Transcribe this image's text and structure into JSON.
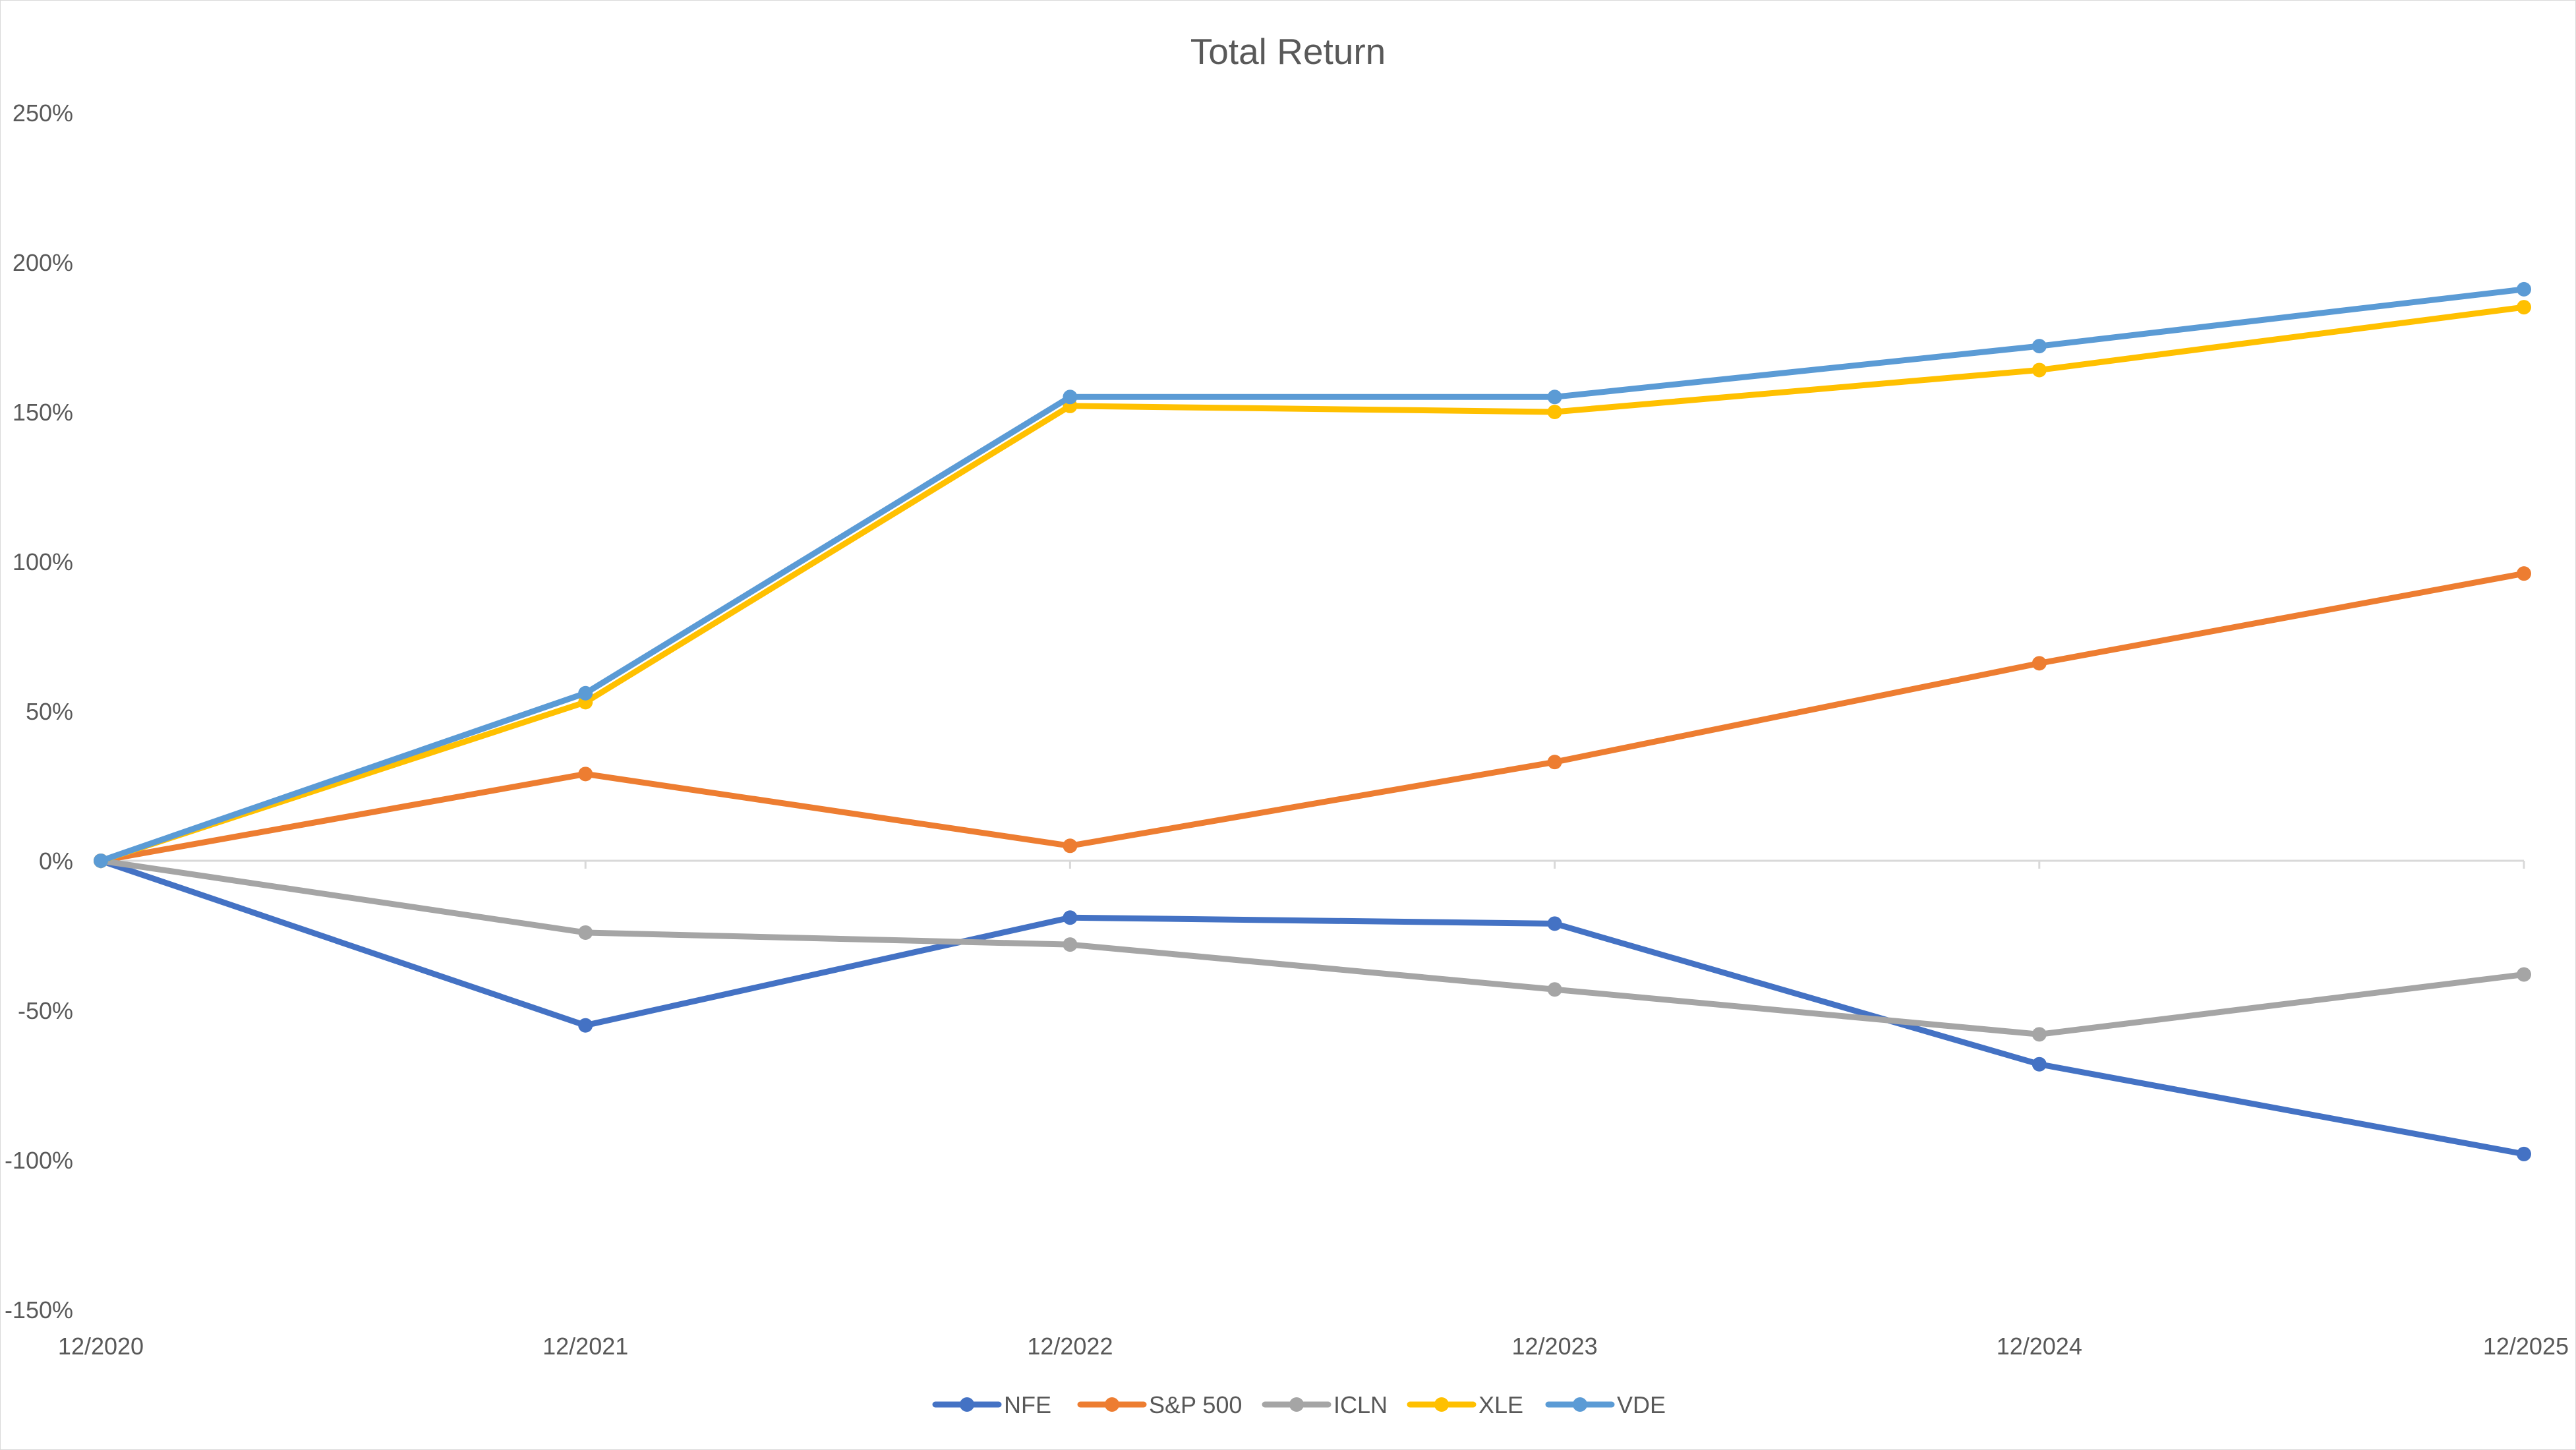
{
  "chart_data": {
    "type": "line",
    "title": "Total Return",
    "xlabel": "",
    "ylabel": "",
    "categories": [
      "12/2020",
      "12/2021",
      "12/2022",
      "12/2023",
      "12/2024",
      "12/2025"
    ],
    "ylim": [
      -150,
      250
    ],
    "yticks": [
      250,
      200,
      150,
      100,
      50,
      0,
      -50,
      -100,
      -150
    ],
    "ytick_labels": [
      "250%",
      "200%",
      "150%",
      "100%",
      "50%",
      "0%",
      "-50%",
      "-100%",
      "-150%"
    ],
    "grid": false,
    "legend_position": "bottom",
    "series": [
      {
        "name": "NFE",
        "color": "#4472c4",
        "values": [
          0,
          -55,
          -19,
          -21,
          -68,
          -98
        ]
      },
      {
        "name": "S&P 500",
        "color": "#ed7d31",
        "values": [
          0,
          29,
          5,
          33,
          66,
          96
        ]
      },
      {
        "name": "ICLN",
        "color": "#a5a5a5",
        "values": [
          0,
          -24,
          -28,
          -43,
          -58,
          -38
        ]
      },
      {
        "name": "XLE",
        "color": "#ffc000",
        "values": [
          0,
          53,
          152,
          150,
          164,
          185
        ]
      },
      {
        "name": "VDE",
        "color": "#5b9bd5",
        "values": [
          0,
          56,
          155,
          155,
          172,
          191
        ]
      }
    ]
  }
}
